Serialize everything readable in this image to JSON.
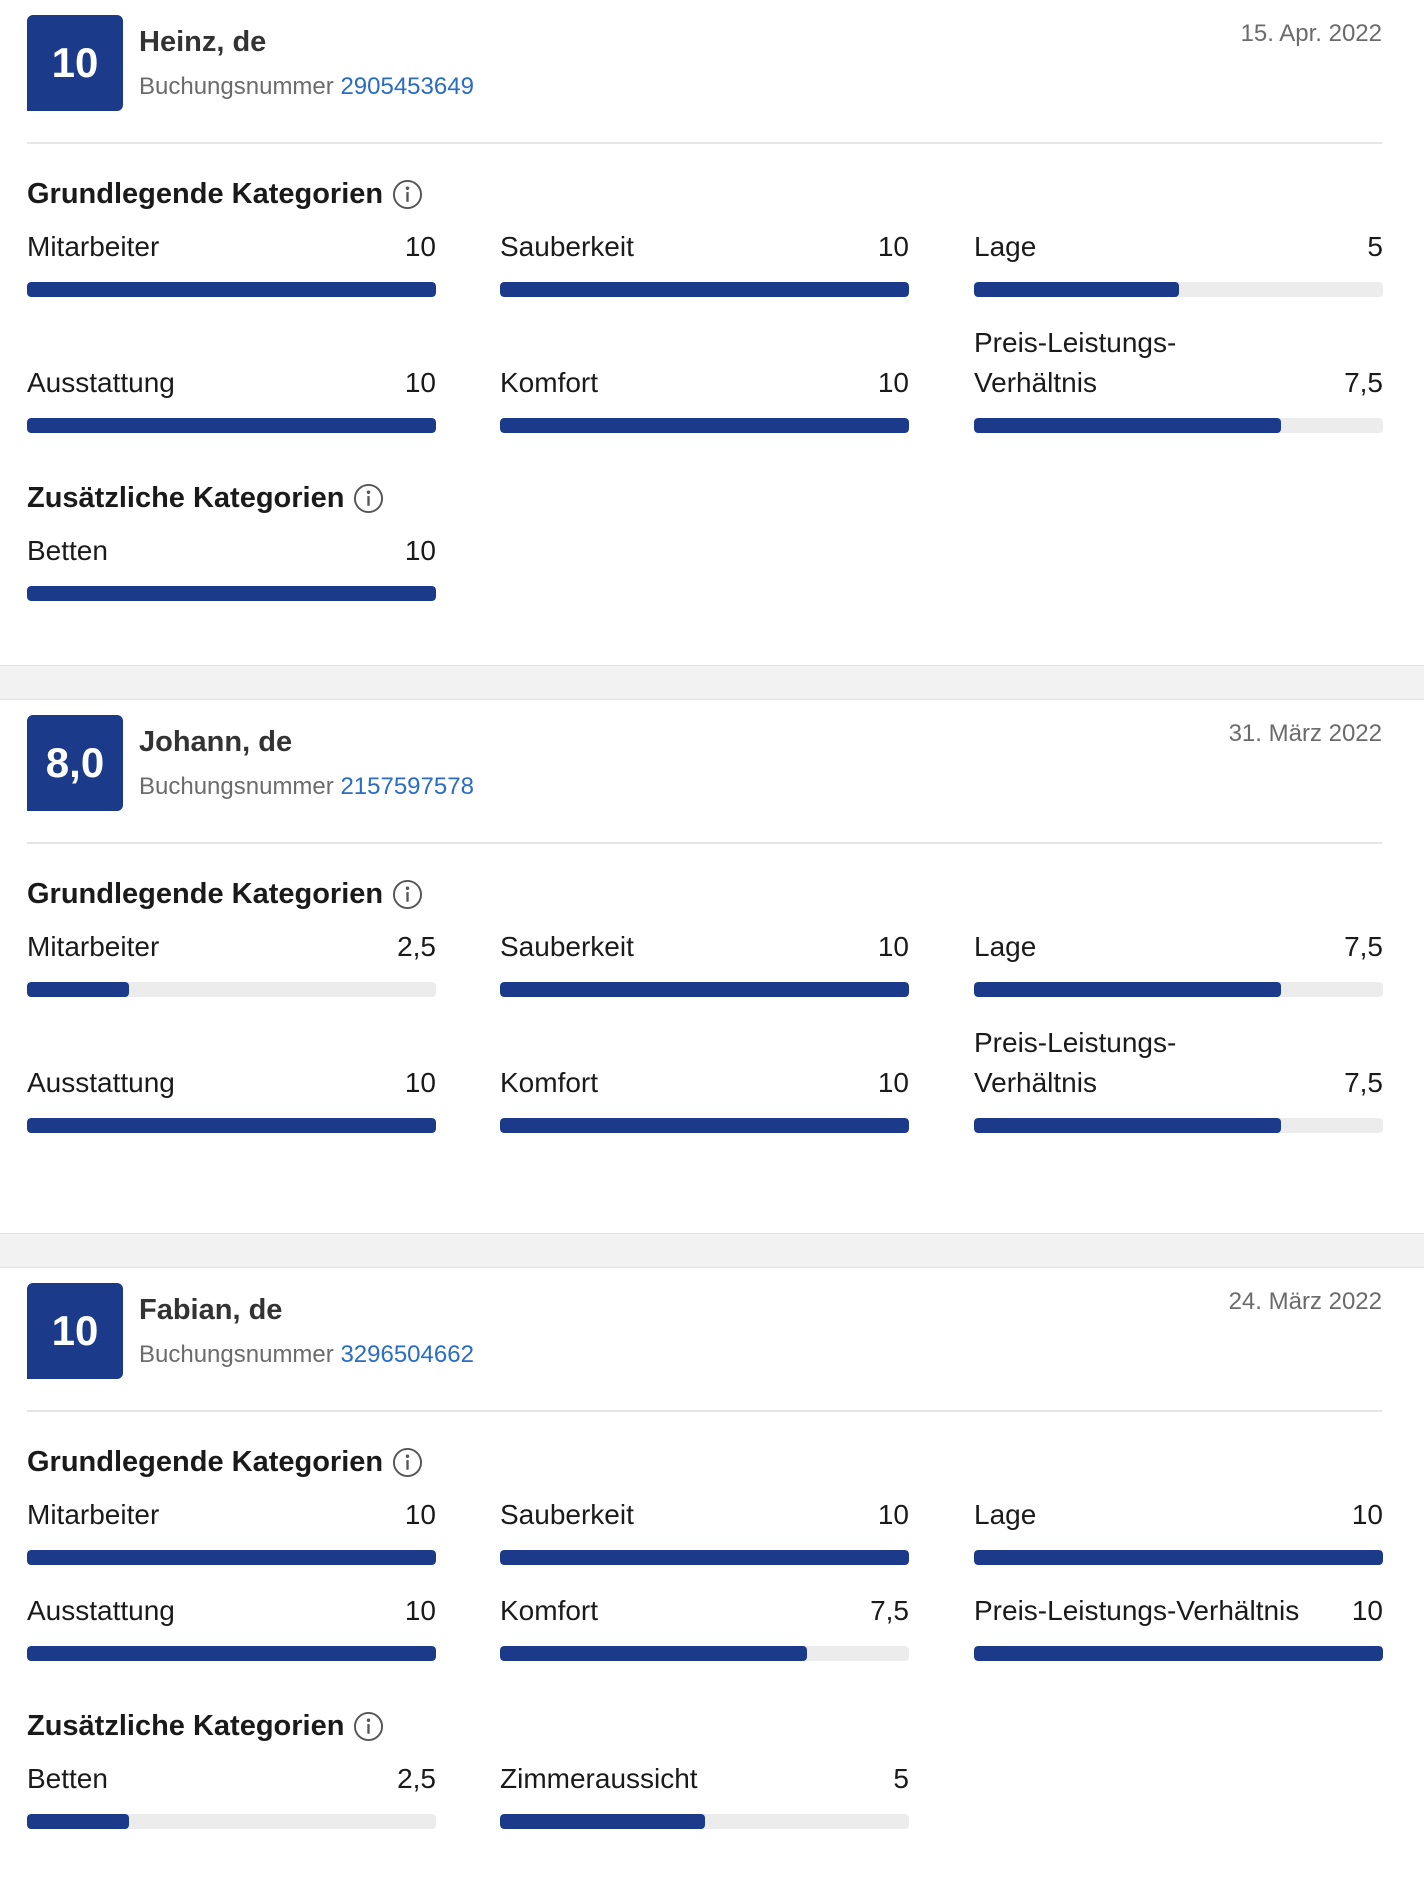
{
  "colors": {
    "brand": "#1b3a8a",
    "link": "#2a6cc4",
    "track": "#ececec"
  },
  "reviews": [
    {
      "score": "10",
      "name": "Heinz, de",
      "booking_label": "Buchungsnummer",
      "booking_number": "2905453649",
      "date": "15. Apr. 2022",
      "basic_title": "Grundlegende Kategorien",
      "basic": [
        {
          "label": "Mitarbeiter",
          "value": "10",
          "fraction": 1.0
        },
        {
          "label": "Sauberkeit",
          "value": "10",
          "fraction": 1.0
        },
        {
          "label": "Lage",
          "value": "5",
          "fraction": 0.5
        },
        {
          "label": "Ausstattung",
          "value": "10",
          "fraction": 1.0
        },
        {
          "label": "Komfort",
          "value": "10",
          "fraction": 1.0
        },
        {
          "label": "Preis-Leistungs-Verhältnis",
          "value": "7,5",
          "fraction": 0.75
        }
      ],
      "extra_title": "Zusätzliche Kategorien",
      "extra": [
        {
          "label": "Betten",
          "value": "10",
          "fraction": 1.0
        }
      ]
    },
    {
      "score": "8,0",
      "name": "Johann, de",
      "booking_label": "Buchungsnummer",
      "booking_number": "2157597578",
      "date": "31. März 2022",
      "basic_title": "Grundlegende Kategorien",
      "basic": [
        {
          "label": "Mitarbeiter",
          "value": "2,5",
          "fraction": 0.25
        },
        {
          "label": "Sauberkeit",
          "value": "10",
          "fraction": 1.0
        },
        {
          "label": "Lage",
          "value": "7,5",
          "fraction": 0.75
        },
        {
          "label": "Ausstattung",
          "value": "10",
          "fraction": 1.0
        },
        {
          "label": "Komfort",
          "value": "10",
          "fraction": 1.0
        },
        {
          "label": "Preis-Leistungs-Verhältnis",
          "value": "7,5",
          "fraction": 0.75
        }
      ]
    },
    {
      "score": "10",
      "name": "Fabian, de",
      "booking_label": "Buchungsnummer",
      "booking_number": "3296504662",
      "date": "24. März 2022",
      "basic_title": "Grundlegende Kategorien",
      "basic": [
        {
          "label": "Mitarbeiter",
          "value": "10",
          "fraction": 1.0
        },
        {
          "label": "Sauberkeit",
          "value": "10",
          "fraction": 1.0
        },
        {
          "label": "Lage",
          "value": "10",
          "fraction": 1.0
        },
        {
          "label": "Ausstattung",
          "value": "10",
          "fraction": 1.0
        },
        {
          "label": "Komfort",
          "value": "7,5",
          "fraction": 0.75
        },
        {
          "label": "Preis-Leistungs-Verhältnis",
          "value": "10",
          "fraction": 1.0
        }
      ],
      "extra_title": "Zusätzliche Kategorien",
      "extra": [
        {
          "label": "Betten",
          "value": "2,5",
          "fraction": 0.25
        },
        {
          "label": "Zimmeraussicht",
          "value": "5",
          "fraction": 0.5
        }
      ]
    }
  ]
}
